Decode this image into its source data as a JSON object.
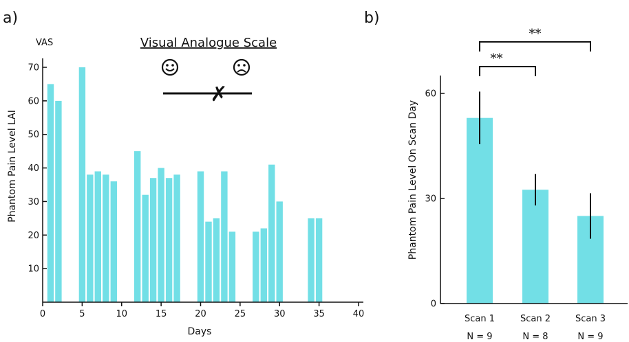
{
  "chart_data": [
    {
      "type": "bar",
      "panel_label": "a)",
      "xlabel": "Days",
      "ylabel": "Phantom Pain Level  LAI",
      "yunit": "VAS",
      "xlim": [
        0,
        40
      ],
      "ylim": [
        0,
        75
      ],
      "xticks": [
        0,
        5,
        10,
        15,
        20,
        25,
        30,
        35,
        40
      ],
      "yticks": [
        10,
        20,
        30,
        40,
        50,
        60,
        70
      ],
      "color": "#72dfe6",
      "inset": {
        "title": "Visual Analogue Scale",
        "left_icon": "smiley-face-icon",
        "right_icon": "sad-face-icon",
        "marker": "✗"
      },
      "x": [
        1,
        2,
        5,
        6,
        7,
        8,
        9,
        12,
        13,
        14,
        15,
        16,
        17,
        20,
        21,
        22,
        23,
        24,
        27,
        28,
        29,
        30,
        34,
        35
      ],
      "values": [
        65,
        60,
        70,
        38,
        39,
        38,
        36,
        45,
        32,
        37,
        40,
        37,
        38,
        39,
        24,
        25,
        39,
        21,
        21,
        22,
        41,
        30,
        25,
        25
      ]
    },
    {
      "type": "bar",
      "panel_label": "b)",
      "xlabel": "",
      "ylabel": "Phantom Pain Level On Scan Day",
      "ylim": [
        0,
        62
      ],
      "yticks": [
        0,
        30,
        60
      ],
      "color": "#72dfe6",
      "categories": [
        "Scan 1",
        "Scan 2",
        "Scan 3"
      ],
      "n_labels": [
        "N = 9",
        "N = 8",
        "N = 9"
      ],
      "values": [
        53,
        32.5,
        25
      ],
      "error": [
        7.5,
        4.5,
        6.5
      ],
      "significance": [
        {
          "from": "Scan 1",
          "to": "Scan 2",
          "label": "**"
        },
        {
          "from": "Scan 1",
          "to": "Scan 3",
          "label": "**"
        }
      ]
    }
  ]
}
